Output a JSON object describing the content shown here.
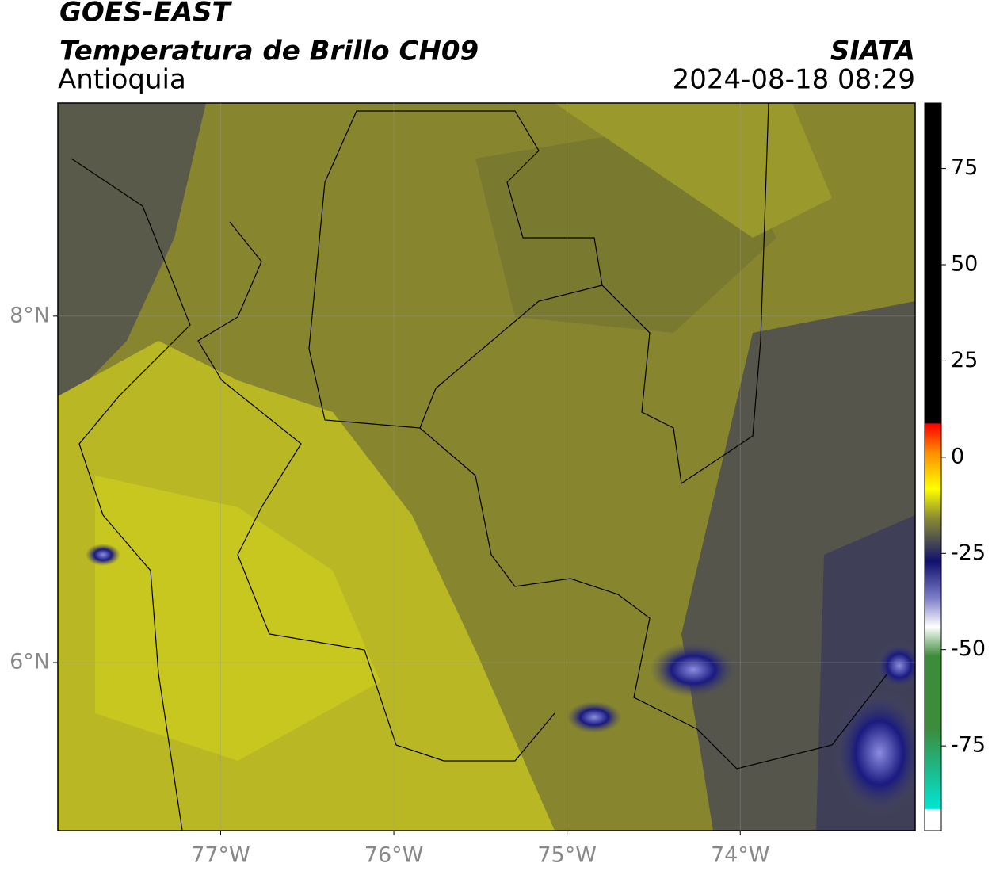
{
  "header": {
    "satellite": "GOES-EAST",
    "product": "Temperatura de Brillo CH09",
    "region": "Antioquia",
    "source": "SIATA",
    "datetime": "2024-08-18 08:29"
  },
  "map": {
    "xlim": [
      -77.94,
      -72.99
    ],
    "ylim": [
      5.03,
      9.23
    ],
    "xticks": [
      {
        "value": -77,
        "label": "77°W"
      },
      {
        "value": -76,
        "label": "76°W"
      },
      {
        "value": -75,
        "label": "75°W"
      },
      {
        "value": -74,
        "label": "74°W"
      }
    ],
    "yticks": [
      {
        "value": 8,
        "label": "8°N"
      },
      {
        "value": 6,
        "label": "6°N"
      }
    ]
  },
  "colorbar": {
    "ylim": [
      -97,
      92
    ],
    "yticks": [
      75,
      50,
      25,
      0,
      -25,
      -50,
      -75
    ]
  }
}
